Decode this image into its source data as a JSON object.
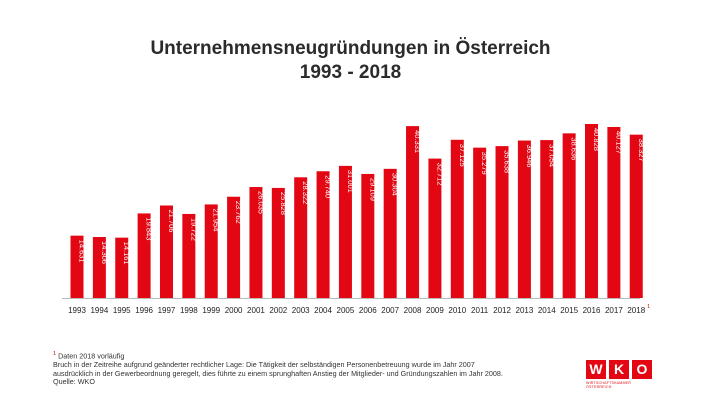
{
  "title": {
    "line1": "Unternehmensneugründungen in Österreich",
    "line2": "1993 - 2018"
  },
  "chart_data": {
    "type": "bar",
    "title": "Unternehmensneugründungen in Österreich 1993 - 2018",
    "categories": [
      "1993",
      "1994",
      "1995",
      "1996",
      "1997",
      "1998",
      "1999",
      "2000",
      "2001",
      "2002",
      "2003",
      "2004",
      "2005",
      "2006",
      "2007",
      "2008",
      "2009",
      "2010",
      "2011",
      "2012",
      "2013",
      "2014",
      "2015",
      "2016",
      "2017",
      "2018"
    ],
    "values": [
      14631,
      14306,
      14161,
      19843,
      21706,
      19722,
      21954,
      23762,
      26035,
      25828,
      28322,
      29740,
      31001,
      29109,
      30304,
      40331,
      32712,
      37125,
      35279,
      35638,
      36946,
      37054,
      38636,
      40828,
      40127,
      38327
    ],
    "labels": [
      "14.631",
      "14.306",
      "14.161",
      "19.843",
      "21.706",
      "19.722",
      "21.954",
      "23.762",
      "26.035",
      "25.828",
      "28.322",
      "29.740",
      "31.001",
      "29.109",
      "30.304",
      "40.331",
      "32.712",
      "37.125",
      "35.279",
      "35.638",
      "36.946",
      "37.054",
      "38.636",
      "40.828",
      "40.127",
      "38.327"
    ],
    "last_category_marker": "1",
    "color": "#e30613",
    "ylim": [
      0,
      40828
    ],
    "xlabel": "",
    "ylabel": ""
  },
  "footnotes": {
    "marker": "1",
    "note_prelim": "Daten 2018 vorläufig",
    "line2": "Bruch in der Zeitreihe aufgrund geänderter rechtlicher Lage: Die Tätigkeit der selbständigen Personenbetreuung wurde im Jahr 2007",
    "line3": "ausdrücklich in der Gewerbeordnung geregelt, dies führte zu einem sprunghaften Anstieg der Mitglieder- und Gründungszahlen im Jahr 2008.",
    "line4": "Quelle: WKO"
  },
  "logo": {
    "letters": [
      "W",
      "K",
      "O"
    ],
    "subtitle": "WIRTSCHAFTSKAMMER ÖSTERREICH",
    "color": "#e30613"
  }
}
